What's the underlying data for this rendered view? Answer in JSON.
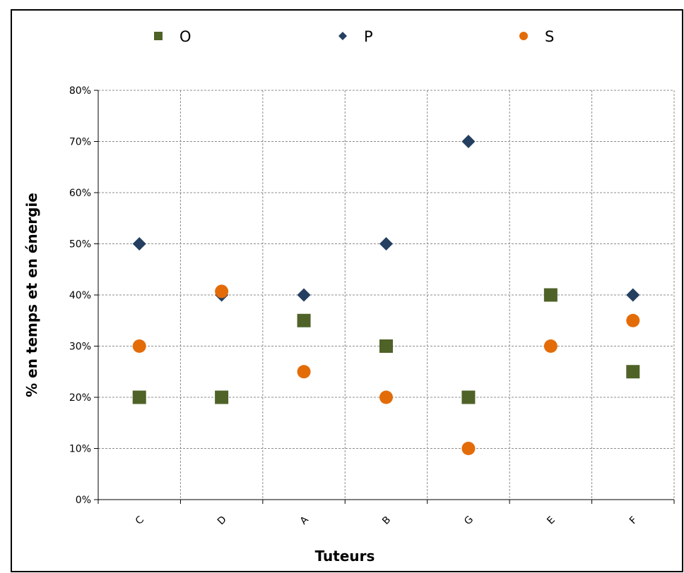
{
  "chart_data": {
    "type": "scatter",
    "categories": [
      "C",
      "D",
      "A",
      "B",
      "G",
      "E",
      "F"
    ],
    "series": [
      {
        "name": "O",
        "marker": "square",
        "color": "#4f6228",
        "values": [
          20,
          20,
          35,
          30,
          20,
          40,
          25
        ]
      },
      {
        "name": "P",
        "marker": "diamond",
        "color": "#243f60",
        "values": [
          50,
          40,
          40,
          50,
          70,
          30,
          40
        ]
      },
      {
        "name": "S",
        "marker": "circle",
        "color": "#e36c09",
        "values": [
          30,
          40.7,
          25,
          20,
          10,
          30,
          35
        ]
      }
    ],
    "xlabel": "Tuteurs",
    "ylabel": "%  en temps et en énergie",
    "ylim": [
      0,
      80
    ],
    "yticks": [
      0,
      10,
      20,
      30,
      40,
      50,
      60,
      70,
      80
    ],
    "ytick_suffix": "%",
    "grid": true,
    "legend": "top"
  }
}
